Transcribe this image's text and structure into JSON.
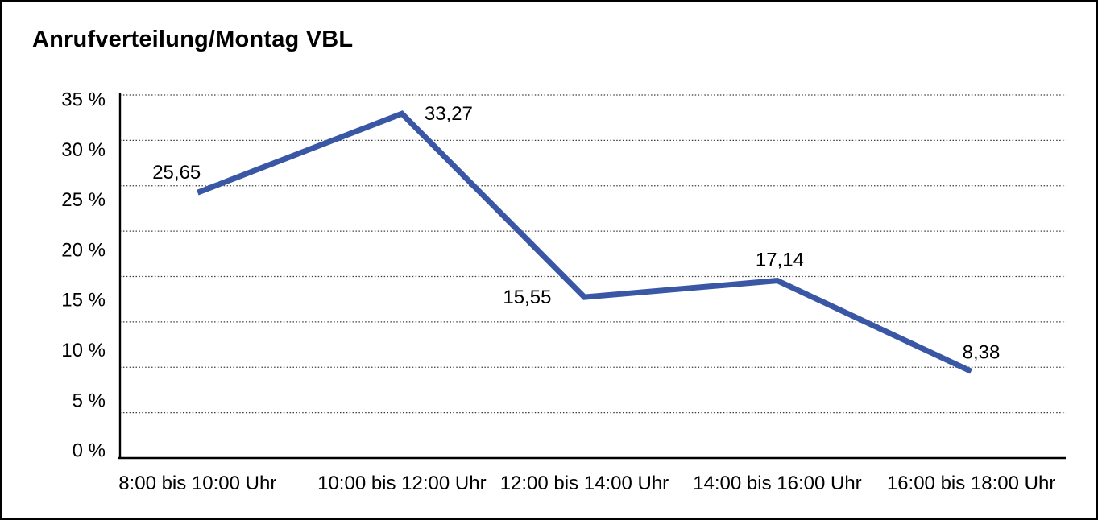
{
  "chart_data": {
    "type": "line",
    "title": "Anrufverteilung/Montag VBL",
    "categories": [
      "8:00 bis 10:00 Uhr",
      "10:00 bis 12:00 Uhr",
      "12:00 bis 14:00 Uhr",
      "14:00 bis 16:00 Uhr",
      "16:00 bis 18:00 Uhr"
    ],
    "values": [
      25.65,
      33.27,
      15.55,
      17.14,
      8.38
    ],
    "value_labels": [
      "25,65",
      "33,27",
      "15,55",
      "17,14",
      "8,38"
    ],
    "label_positions": [
      "above-left",
      "right",
      "left",
      "above",
      "above-right"
    ],
    "y_tick_labels": [
      "35 %",
      "30 %",
      "25 %",
      "20 %",
      "15 %",
      "10 %",
      "5 %",
      "0 %"
    ],
    "ylim": [
      0,
      35
    ],
    "unit": "%",
    "grid": "horizontal-dotted",
    "legend": "none",
    "line_color": "#3A57A6",
    "text_color": "#000000"
  }
}
